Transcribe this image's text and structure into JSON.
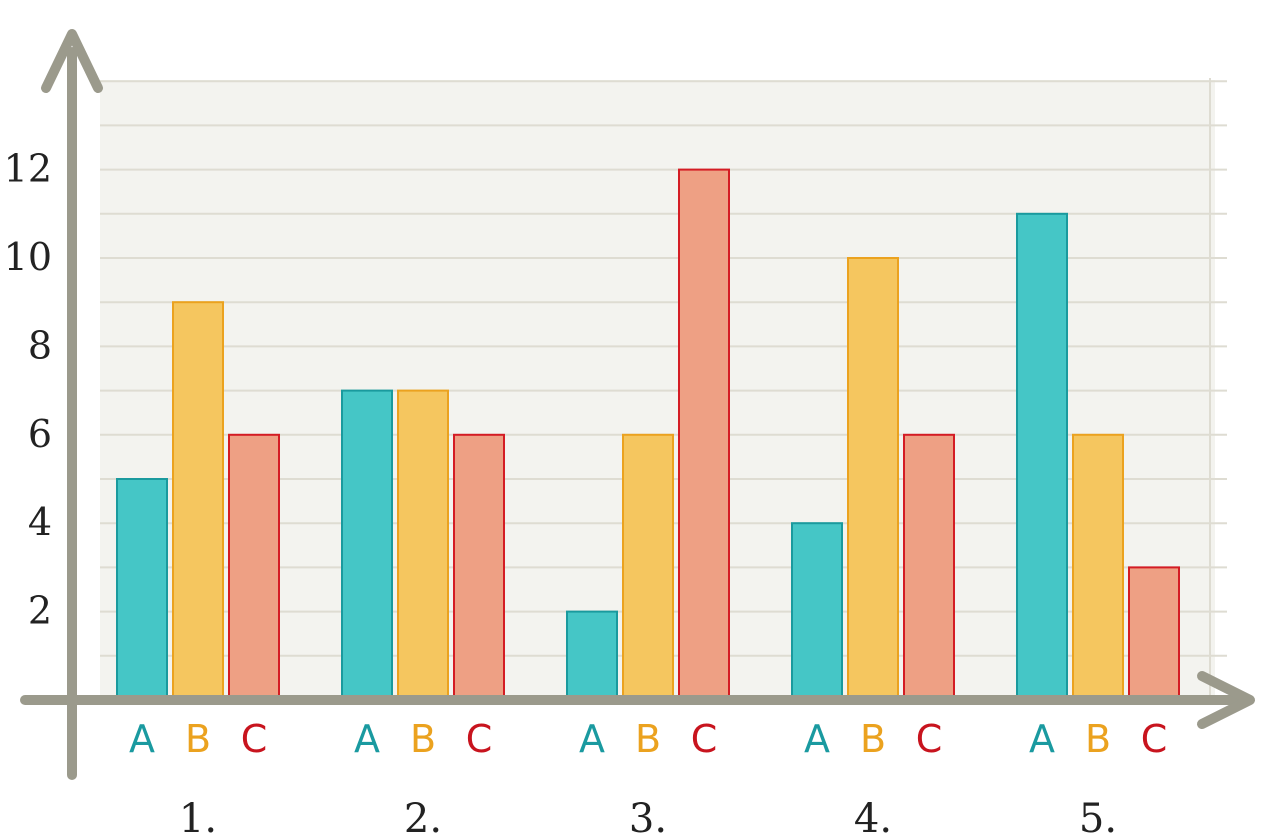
{
  "chart_data": {
    "type": "bar",
    "categories": [
      "1.",
      "2.",
      "3.",
      "4.",
      "5."
    ],
    "series_labels": [
      "A",
      "B",
      "C"
    ],
    "series": [
      {
        "values": [
          5,
          7,
          2,
          4,
          11
        ]
      },
      {
        "values": [
          9,
          7,
          6,
          10,
          6
        ]
      },
      {
        "values": [
          6,
          6,
          12,
          6,
          3
        ]
      }
    ],
    "y_ticks": [
      "2",
      "4",
      "6",
      "8",
      "10",
      "12"
    ],
    "ylim": [
      0,
      14
    ],
    "grid": true,
    "colors": {
      "A": {
        "fill": "#45c6c6",
        "stroke": "#1a9a9e",
        "label": "#1a9aa0"
      },
      "B": {
        "fill": "#f5c65f",
        "stroke": "#eba21f",
        "label": "#eba21f"
      },
      "C": {
        "fill": "#eea084",
        "stroke": "#d41c24",
        "label": "#c8141e"
      },
      "axis": "#9b9a8c",
      "grid_line": "#dedcd2",
      "plot_bg": "#f3f3ef"
    }
  }
}
